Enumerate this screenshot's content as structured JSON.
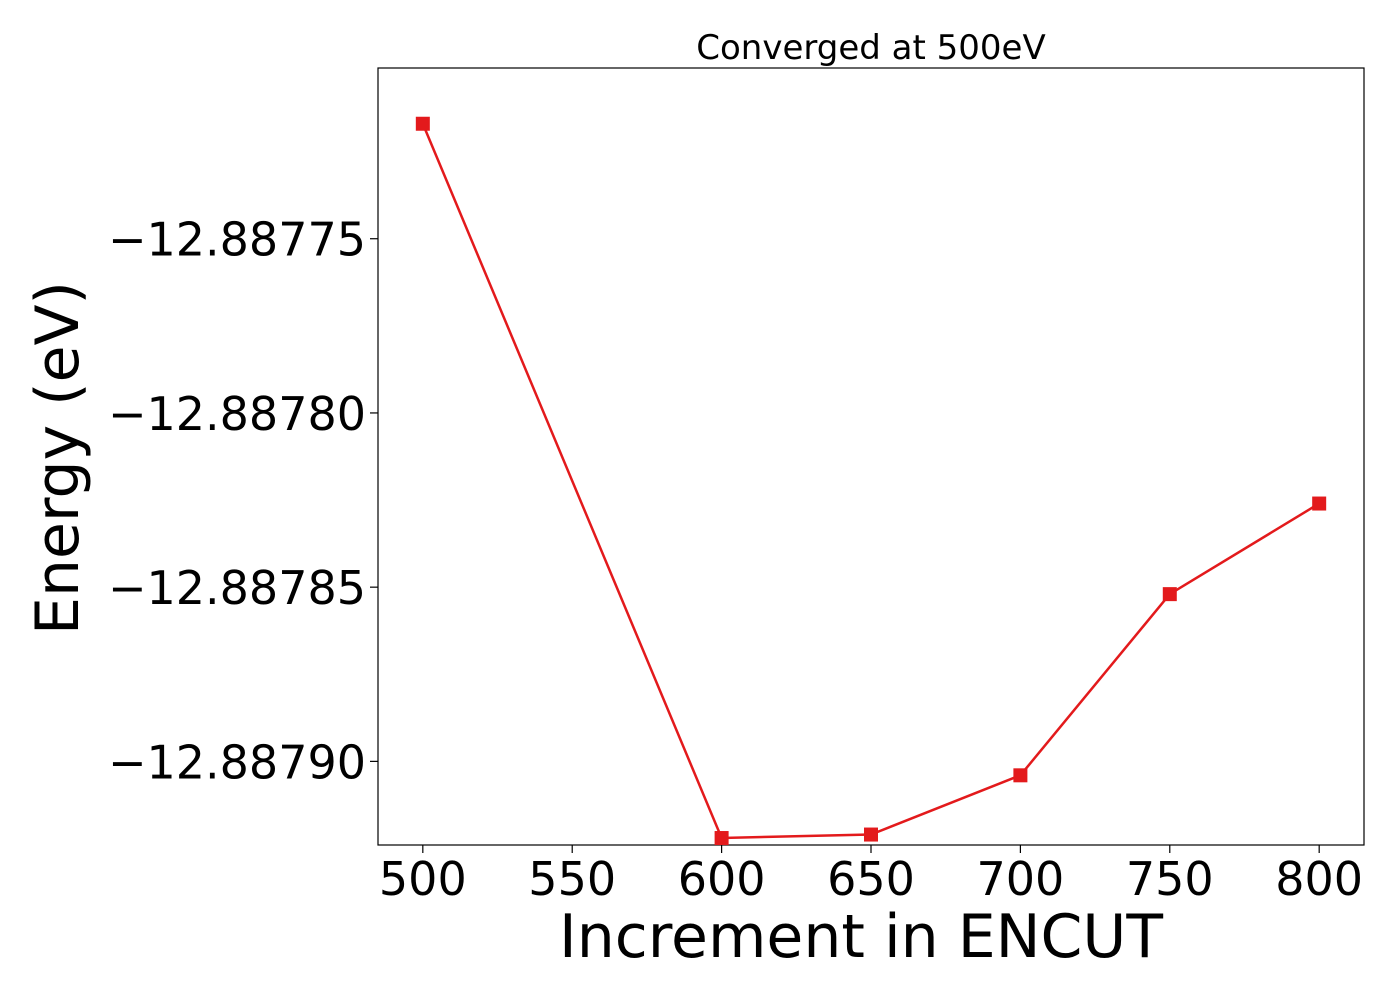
{
  "chart_data": {
    "type": "line",
    "title": "Converged at 500eV",
    "xlabel": "Increment in ENCUT",
    "ylabel": "Energy (eV)",
    "x": [
      500,
      600,
      650,
      700,
      750,
      800
    ],
    "series": [
      {
        "values": [
          -12.887717,
          -12.887922,
          -12.887921,
          -12.887904,
          -12.887852,
          -12.887826
        ],
        "color": "#e31a1c",
        "marker": "square"
      }
    ],
    "xlim": [
      485,
      815
    ],
    "ylim": [
      -12.887924,
      -12.887701
    ],
    "xticks": [
      500,
      550,
      600,
      650,
      700,
      750,
      800
    ],
    "xtick_labels": [
      "500",
      "550",
      "600",
      "650",
      "700",
      "750",
      "800"
    ],
    "yticks": [
      -12.88775,
      -12.8878,
      -12.88785,
      -12.8879
    ],
    "ytick_labels": [
      "−12.88775",
      "−12.88780",
      "−12.88785",
      "−12.88790"
    ],
    "grid": false,
    "legend": false
  }
}
